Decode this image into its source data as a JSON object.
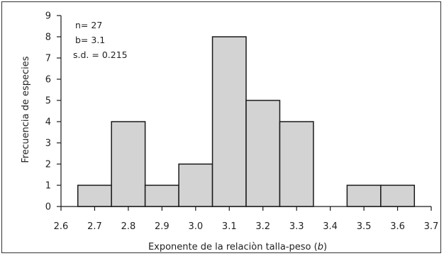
{
  "chart_data": {
    "type": "bar",
    "categories": [
      "2.7",
      "2.8",
      "2.9",
      "3.0",
      "3.1",
      "3.2",
      "3.3",
      "3.4",
      "3.5",
      "3.6"
    ],
    "values": [
      1,
      4,
      1,
      2,
      8,
      5,
      4,
      0,
      1,
      1
    ],
    "bin_edges": [
      2.65,
      2.75,
      2.85,
      2.95,
      3.05,
      3.15,
      3.25,
      3.35,
      3.45,
      3.55,
      3.65
    ],
    "title": "",
    "xlabel_prefix": "Exponente de la relaciòn talla-peso (",
    "xlabel_var": "b",
    "xlabel_suffix": ")",
    "ylabel": "Frecuencia de especies",
    "xlim": [
      2.6,
      3.7
    ],
    "ylim": [
      0,
      9
    ],
    "x_ticks": [
      "2.6",
      "2.7",
      "2.8",
      "2.9",
      "3.0",
      "3.1",
      "3.2",
      "3.3",
      "3.4",
      "3.5",
      "3.6",
      "3.7"
    ],
    "x_tick_values": [
      2.6,
      2.7,
      2.8,
      2.9,
      3.0,
      3.1,
      3.2,
      3.3,
      3.4,
      3.5,
      3.6,
      3.7
    ],
    "y_ticks": [
      "0",
      "1",
      "2",
      "3",
      "4",
      "5",
      "6",
      "7",
      "8",
      "9"
    ],
    "y_tick_values": [
      0,
      1,
      2,
      3,
      4,
      5,
      6,
      7,
      8,
      9
    ],
    "grid": false,
    "annotations": [
      "n= 27",
      "b= 3.1",
      "s.d. = 0.215"
    ],
    "bar_color": "#d3d3d3",
    "edge_color": "#1a1a1a"
  }
}
